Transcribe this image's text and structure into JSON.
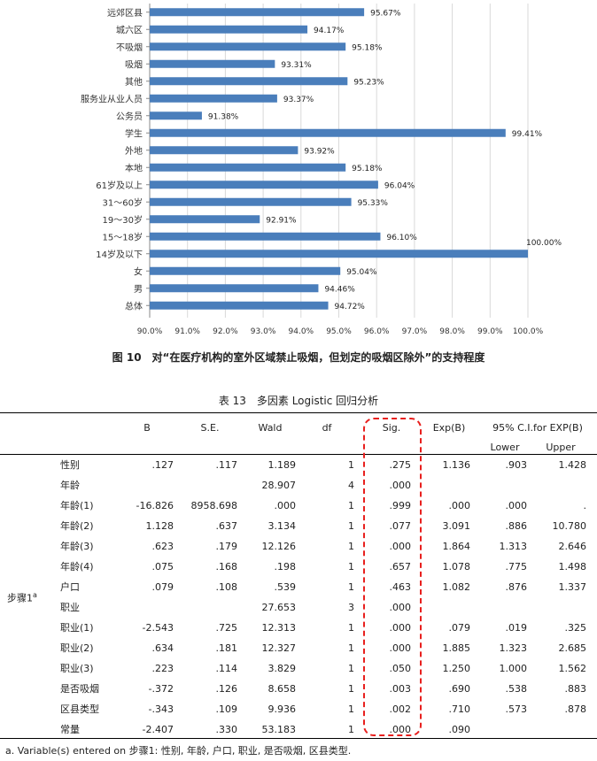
{
  "chart_data": {
    "type": "bar",
    "orientation": "horizontal",
    "categories": [
      "远郊区县",
      "城六区",
      "不吸烟",
      "吸烟",
      "其他",
      "服务业从业人员",
      "公务员",
      "学生",
      "外地",
      "本地",
      "61岁及以上",
      "31～60岁",
      "19～30岁",
      "15～18岁",
      "14岁及以下",
      "女",
      "男",
      "总体"
    ],
    "values": [
      95.67,
      94.17,
      95.18,
      93.31,
      95.23,
      93.37,
      91.38,
      99.41,
      93.92,
      95.18,
      96.04,
      95.33,
      92.91,
      96.1,
      100.0,
      95.04,
      94.46,
      94.72
    ],
    "value_labels": [
      "95.67%",
      "94.17%",
      "95.18%",
      "93.31%",
      "95.23%",
      "93.37%",
      "91.38%",
      "99.41%",
      "93.92%",
      "95.18%",
      "96.04%",
      "95.33%",
      "92.91%",
      "96.10%",
      "100.00%",
      "95.04%",
      "94.46%",
      "94.72%"
    ],
    "xlim": [
      90,
      100
    ],
    "x_ticks": [
      90,
      91,
      92,
      93,
      94,
      95,
      96,
      97,
      98,
      99,
      100
    ],
    "x_tick_labels": [
      "90.0%",
      "91.0%",
      "92.0%",
      "93.0%",
      "94.0%",
      "95.0%",
      "96.0%",
      "97.0%",
      "98.0%",
      "99.0%",
      "100.0%"
    ],
    "grid": true,
    "bar_color": "#4a7ebb",
    "title": "图 10　对“在医疗机构的室外区域禁止吸烟，但划定的吸烟区除外”的支持程度"
  },
  "table": {
    "title": "表 13　多因素 Logistic 回归分析",
    "headers": {
      "b": "B",
      "se": "S.E.",
      "wald": "Wald",
      "df": "df",
      "sig": "Sig.",
      "expb": "Exp(B)",
      "ci": "95% C.I.for EXP(B)",
      "lower": "Lower",
      "upper": "Upper"
    },
    "step_label": "步骤1",
    "step_sup": "a",
    "rows": [
      {
        "var": "性别",
        "b": ".127",
        "se": ".117",
        "wald": "1.189",
        "df": "1",
        "sig": ".275",
        "expb": "1.136",
        "lower": ".903",
        "upper": "1.428"
      },
      {
        "var": "年龄",
        "b": "",
        "se": "",
        "wald": "28.907",
        "df": "4",
        "sig": ".000",
        "expb": "",
        "lower": "",
        "upper": ""
      },
      {
        "var": "年龄(1)",
        "b": "-16.826",
        "se": "8958.698",
        "wald": ".000",
        "df": "1",
        "sig": ".999",
        "expb": ".000",
        "lower": ".000",
        "upper": "."
      },
      {
        "var": "年龄(2)",
        "b": "1.128",
        "se": ".637",
        "wald": "3.134",
        "df": "1",
        "sig": ".077",
        "expb": "3.091",
        "lower": ".886",
        "upper": "10.780"
      },
      {
        "var": "年龄(3)",
        "b": ".623",
        "se": ".179",
        "wald": "12.126",
        "df": "1",
        "sig": ".000",
        "expb": "1.864",
        "lower": "1.313",
        "upper": "2.646"
      },
      {
        "var": "年龄(4)",
        "b": ".075",
        "se": ".168",
        "wald": ".198",
        "df": "1",
        "sig": ".657",
        "expb": "1.078",
        "lower": ".775",
        "upper": "1.498"
      },
      {
        "var": "户口",
        "b": ".079",
        "se": ".108",
        "wald": ".539",
        "df": "1",
        "sig": ".463",
        "expb": "1.082",
        "lower": ".876",
        "upper": "1.337"
      },
      {
        "var": "职业",
        "b": "",
        "se": "",
        "wald": "27.653",
        "df": "3",
        "sig": ".000",
        "expb": "",
        "lower": "",
        "upper": ""
      },
      {
        "var": "职业(1)",
        "b": "-2.543",
        "se": ".725",
        "wald": "12.313",
        "df": "1",
        "sig": ".000",
        "expb": ".079",
        "lower": ".019",
        "upper": ".325"
      },
      {
        "var": "职业(2)",
        "b": ".634",
        "se": ".181",
        "wald": "12.327",
        "df": "1",
        "sig": ".000",
        "expb": "1.885",
        "lower": "1.323",
        "upper": "2.685"
      },
      {
        "var": "职业(3)",
        "b": ".223",
        "se": ".114",
        "wald": "3.829",
        "df": "1",
        "sig": ".050",
        "expb": "1.250",
        "lower": "1.000",
        "upper": "1.562"
      },
      {
        "var": "是否吸烟",
        "b": "-.372",
        "se": ".126",
        "wald": "8.658",
        "df": "1",
        "sig": ".003",
        "expb": ".690",
        "lower": ".538",
        "upper": ".883"
      },
      {
        "var": "区县类型",
        "b": "-.343",
        "se": ".109",
        "wald": "9.936",
        "df": "1",
        "sig": ".002",
        "expb": ".710",
        "lower": ".573",
        "upper": ".878"
      },
      {
        "var": "常量",
        "b": "-2.407",
        "se": ".330",
        "wald": "53.183",
        "df": "1",
        "sig": ".000",
        "expb": ".090",
        "lower": "",
        "upper": ""
      }
    ],
    "footnote": "a. Variable(s) entered on  步骤1: 性别, 年龄, 户口, 职业, 是否吸烟, 区县类型.",
    "highlight_color": "#e8201e"
  }
}
